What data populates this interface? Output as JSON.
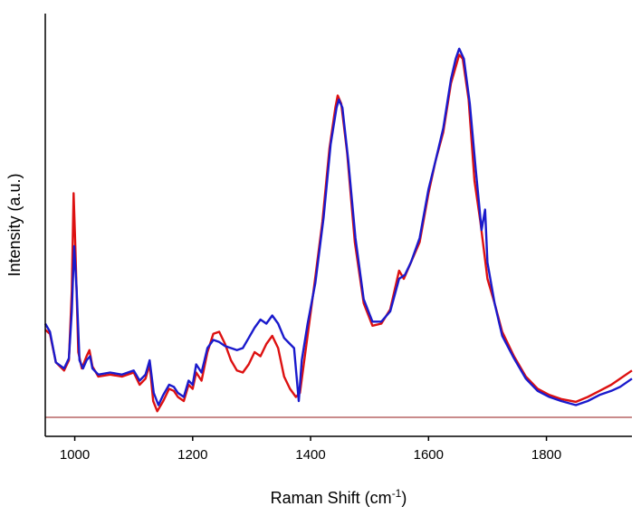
{
  "chart_data": {
    "type": "line",
    "title": "",
    "xlabel": "Raman Shift (cm",
    "xlabel_sup": "-1",
    "xlabel_close": ")",
    "ylabel": "Intensity (a.u.)",
    "xlim": [
      950,
      1945
    ],
    "ylim": [
      0,
      1
    ],
    "xticks": [
      1000,
      1200,
      1400,
      1600,
      1800
    ],
    "grid": false,
    "legend": "none",
    "baseline": {
      "y": 0.02,
      "color": "#c98b8b"
    },
    "series": [
      {
        "color": "#dd1111",
        "points": [
          [
            950,
            0.235
          ],
          [
            958,
            0.225
          ],
          [
            968,
            0.155
          ],
          [
            982,
            0.135
          ],
          [
            990,
            0.16
          ],
          [
            995,
            0.33
          ],
          [
            998,
            0.57
          ],
          [
            1001,
            0.44
          ],
          [
            1006,
            0.18
          ],
          [
            1012,
            0.14
          ],
          [
            1020,
            0.17
          ],
          [
            1025,
            0.185
          ],
          [
            1030,
            0.145
          ],
          [
            1040,
            0.12
          ],
          [
            1060,
            0.125
          ],
          [
            1080,
            0.12
          ],
          [
            1100,
            0.13
          ],
          [
            1110,
            0.1
          ],
          [
            1120,
            0.115
          ],
          [
            1127,
            0.15
          ],
          [
            1133,
            0.06
          ],
          [
            1140,
            0.035
          ],
          [
            1150,
            0.06
          ],
          [
            1160,
            0.09
          ],
          [
            1168,
            0.085
          ],
          [
            1175,
            0.07
          ],
          [
            1185,
            0.06
          ],
          [
            1193,
            0.1
          ],
          [
            1200,
            0.09
          ],
          [
            1206,
            0.13
          ],
          [
            1215,
            0.11
          ],
          [
            1225,
            0.18
          ],
          [
            1235,
            0.225
          ],
          [
            1245,
            0.23
          ],
          [
            1255,
            0.2
          ],
          [
            1265,
            0.16
          ],
          [
            1275,
            0.135
          ],
          [
            1285,
            0.13
          ],
          [
            1295,
            0.15
          ],
          [
            1305,
            0.18
          ],
          [
            1315,
            0.17
          ],
          [
            1325,
            0.2
          ],
          [
            1335,
            0.22
          ],
          [
            1345,
            0.19
          ],
          [
            1355,
            0.12
          ],
          [
            1365,
            0.09
          ],
          [
            1375,
            0.07
          ],
          [
            1382,
            0.08
          ],
          [
            1392,
            0.19
          ],
          [
            1405,
            0.33
          ],
          [
            1420,
            0.5
          ],
          [
            1432,
            0.68
          ],
          [
            1442,
            0.78
          ],
          [
            1446,
            0.81
          ],
          [
            1452,
            0.79
          ],
          [
            1462,
            0.67
          ],
          [
            1475,
            0.45
          ],
          [
            1490,
            0.3
          ],
          [
            1505,
            0.245
          ],
          [
            1520,
            0.25
          ],
          [
            1535,
            0.285
          ],
          [
            1550,
            0.38
          ],
          [
            1558,
            0.36
          ],
          [
            1570,
            0.4
          ],
          [
            1585,
            0.45
          ],
          [
            1600,
            0.57
          ],
          [
            1612,
            0.65
          ],
          [
            1625,
            0.72
          ],
          [
            1638,
            0.84
          ],
          [
            1648,
            0.89
          ],
          [
            1652,
            0.91
          ],
          [
            1658,
            0.9
          ],
          [
            1668,
            0.8
          ],
          [
            1678,
            0.6
          ],
          [
            1688,
            0.5
          ],
          [
            1700,
            0.36
          ],
          [
            1712,
            0.3
          ],
          [
            1725,
            0.23
          ],
          [
            1745,
            0.17
          ],
          [
            1765,
            0.12
          ],
          [
            1785,
            0.09
          ],
          [
            1805,
            0.075
          ],
          [
            1825,
            0.065
          ],
          [
            1850,
            0.058
          ],
          [
            1870,
            0.07
          ],
          [
            1890,
            0.085
          ],
          [
            1910,
            0.1
          ],
          [
            1925,
            0.115
          ],
          [
            1945,
            0.135
          ]
        ]
      },
      {
        "color": "#1a1acc",
        "points": [
          [
            950,
            0.25
          ],
          [
            958,
            0.23
          ],
          [
            968,
            0.155
          ],
          [
            982,
            0.14
          ],
          [
            990,
            0.165
          ],
          [
            995,
            0.28
          ],
          [
            999,
            0.44
          ],
          [
            1003,
            0.34
          ],
          [
            1008,
            0.16
          ],
          [
            1014,
            0.14
          ],
          [
            1020,
            0.16
          ],
          [
            1026,
            0.17
          ],
          [
            1030,
            0.14
          ],
          [
            1040,
            0.125
          ],
          [
            1060,
            0.13
          ],
          [
            1080,
            0.125
          ],
          [
            1100,
            0.135
          ],
          [
            1110,
            0.11
          ],
          [
            1120,
            0.125
          ],
          [
            1127,
            0.16
          ],
          [
            1134,
            0.08
          ],
          [
            1142,
            0.05
          ],
          [
            1150,
            0.075
          ],
          [
            1160,
            0.1
          ],
          [
            1168,
            0.095
          ],
          [
            1175,
            0.08
          ],
          [
            1185,
            0.07
          ],
          [
            1193,
            0.11
          ],
          [
            1200,
            0.1
          ],
          [
            1206,
            0.15
          ],
          [
            1215,
            0.13
          ],
          [
            1225,
            0.19
          ],
          [
            1235,
            0.21
          ],
          [
            1245,
            0.205
          ],
          [
            1255,
            0.195
          ],
          [
            1265,
            0.19
          ],
          [
            1275,
            0.185
          ],
          [
            1285,
            0.19
          ],
          [
            1295,
            0.215
          ],
          [
            1305,
            0.24
          ],
          [
            1315,
            0.26
          ],
          [
            1325,
            0.25
          ],
          [
            1335,
            0.27
          ],
          [
            1345,
            0.25
          ],
          [
            1355,
            0.215
          ],
          [
            1365,
            0.2
          ],
          [
            1372,
            0.19
          ],
          [
            1380,
            0.06
          ],
          [
            1385,
            0.16
          ],
          [
            1395,
            0.25
          ],
          [
            1408,
            0.35
          ],
          [
            1422,
            0.51
          ],
          [
            1434,
            0.69
          ],
          [
            1444,
            0.78
          ],
          [
            1448,
            0.8
          ],
          [
            1454,
            0.78
          ],
          [
            1464,
            0.65
          ],
          [
            1476,
            0.46
          ],
          [
            1490,
            0.31
          ],
          [
            1505,
            0.255
          ],
          [
            1520,
            0.255
          ],
          [
            1535,
            0.28
          ],
          [
            1550,
            0.36
          ],
          [
            1560,
            0.37
          ],
          [
            1570,
            0.4
          ],
          [
            1585,
            0.46
          ],
          [
            1600,
            0.58
          ],
          [
            1612,
            0.65
          ],
          [
            1625,
            0.73
          ],
          [
            1638,
            0.85
          ],
          [
            1646,
            0.9
          ],
          [
            1652,
            0.925
          ],
          [
            1660,
            0.9
          ],
          [
            1670,
            0.79
          ],
          [
            1680,
            0.63
          ],
          [
            1690,
            0.48
          ],
          [
            1696,
            0.53
          ],
          [
            1700,
            0.4
          ],
          [
            1712,
            0.3
          ],
          [
            1725,
            0.22
          ],
          [
            1745,
            0.165
          ],
          [
            1765,
            0.115
          ],
          [
            1785,
            0.085
          ],
          [
            1805,
            0.07
          ],
          [
            1825,
            0.06
          ],
          [
            1850,
            0.05
          ],
          [
            1870,
            0.06
          ],
          [
            1890,
            0.075
          ],
          [
            1910,
            0.085
          ],
          [
            1925,
            0.095
          ],
          [
            1945,
            0.115
          ]
        ]
      }
    ]
  }
}
